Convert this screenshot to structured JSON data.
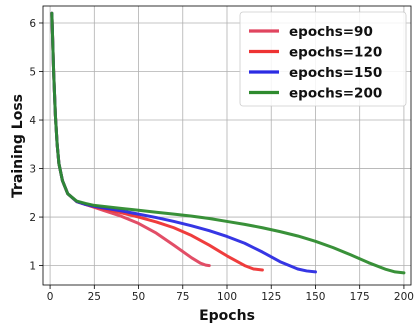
{
  "chart_data": {
    "type": "line",
    "title": "",
    "xlabel": "Epochs",
    "ylabel": "Training Loss",
    "xlim": [
      -4,
      204
    ],
    "ylim": [
      0.6,
      6.35
    ],
    "xticks": [
      0,
      25,
      50,
      75,
      100,
      125,
      150,
      175,
      200
    ],
    "yticks": [
      1,
      2,
      3,
      4,
      5,
      6
    ],
    "grid": true,
    "legend_position": "top-right",
    "series": [
      {
        "name": "epochs=90",
        "color": "#e0455f",
        "x": [
          1,
          2,
          3,
          4,
          5,
          7,
          10,
          15,
          20,
          25,
          30,
          40,
          50,
          60,
          70,
          80,
          85,
          88,
          90
        ],
        "y": [
          6.2,
          5.0,
          4.1,
          3.5,
          3.1,
          2.75,
          2.48,
          2.32,
          2.26,
          2.2,
          2.14,
          2.02,
          1.87,
          1.67,
          1.42,
          1.16,
          1.05,
          1.01,
          1.0
        ]
      },
      {
        "name": "epochs=120",
        "color": "#ee3333",
        "x": [
          1,
          2,
          3,
          4,
          5,
          7,
          10,
          15,
          20,
          25,
          30,
          40,
          50,
          60,
          70,
          80,
          90,
          100,
          110,
          115,
          120
        ],
        "y": [
          6.2,
          5.0,
          4.1,
          3.5,
          3.1,
          2.75,
          2.48,
          2.32,
          2.26,
          2.21,
          2.17,
          2.09,
          2.0,
          1.9,
          1.78,
          1.62,
          1.42,
          1.2,
          1.0,
          0.93,
          0.91
        ]
      },
      {
        "name": "epochs=150",
        "color": "#2b2be3",
        "x": [
          1,
          2,
          3,
          4,
          5,
          7,
          10,
          15,
          20,
          25,
          30,
          40,
          50,
          60,
          70,
          80,
          90,
          100,
          110,
          120,
          130,
          140,
          145,
          150
        ],
        "y": [
          6.2,
          5.0,
          4.1,
          3.5,
          3.1,
          2.75,
          2.48,
          2.32,
          2.26,
          2.22,
          2.19,
          2.13,
          2.06,
          1.99,
          1.91,
          1.82,
          1.72,
          1.6,
          1.46,
          1.28,
          1.08,
          0.93,
          0.89,
          0.87
        ]
      },
      {
        "name": "epochs=200",
        "color": "#2e8b2e",
        "x": [
          1,
          2,
          3,
          4,
          5,
          7,
          10,
          15,
          20,
          25,
          30,
          40,
          50,
          60,
          70,
          80,
          90,
          100,
          110,
          120,
          130,
          140,
          150,
          160,
          170,
          180,
          190,
          195,
          200
        ],
        "y": [
          6.2,
          5.0,
          4.1,
          3.5,
          3.1,
          2.75,
          2.48,
          2.33,
          2.28,
          2.24,
          2.22,
          2.18,
          2.14,
          2.1,
          2.06,
          2.02,
          1.97,
          1.91,
          1.85,
          1.78,
          1.7,
          1.61,
          1.5,
          1.37,
          1.22,
          1.06,
          0.92,
          0.87,
          0.85
        ]
      }
    ]
  }
}
